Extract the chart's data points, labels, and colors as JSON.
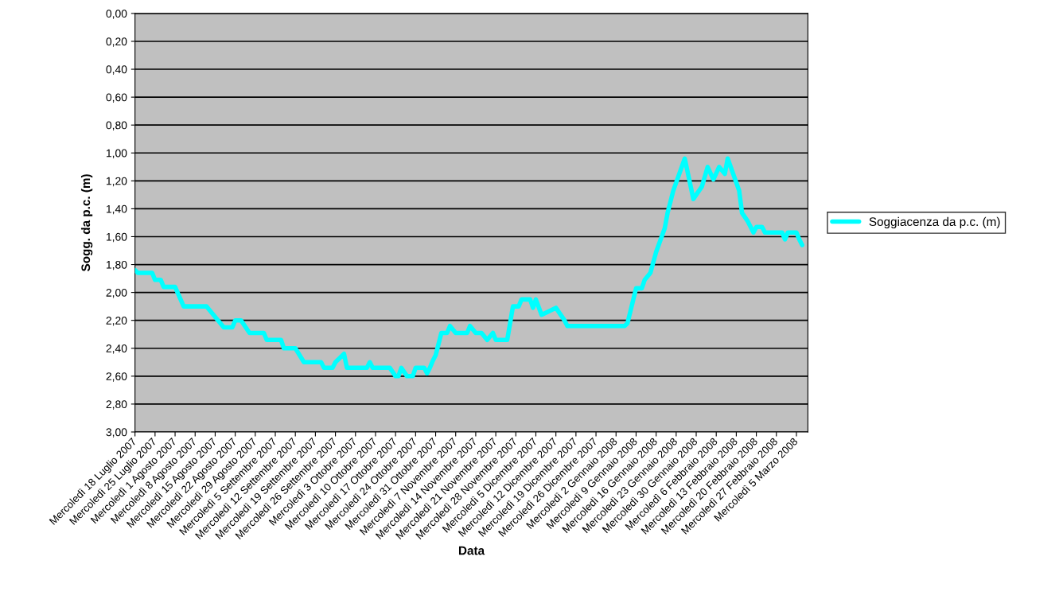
{
  "chart_data": {
    "type": "line",
    "xlabel": "Data",
    "ylabel": "Sogg. da p.c. (m)",
    "x": [
      "2007-07-18",
      "2007-07-19",
      "2007-07-24",
      "2007-07-25",
      "2007-07-27",
      "2007-07-28",
      "2007-08-01",
      "2007-08-04",
      "2007-08-12",
      "2007-08-16",
      "2007-08-18",
      "2007-08-21",
      "2007-08-22",
      "2007-08-24",
      "2007-08-27",
      "2007-09-01",
      "2007-09-02",
      "2007-09-07",
      "2007-09-08",
      "2007-09-12",
      "2007-09-15",
      "2007-09-21",
      "2007-09-22",
      "2007-09-25",
      "2007-09-26",
      "2007-09-29",
      "2007-09-30",
      "2007-10-07",
      "2007-10-08",
      "2007-10-09",
      "2007-10-15",
      "2007-10-17",
      "2007-10-18",
      "2007-10-19",
      "2007-10-21",
      "2007-10-23",
      "2007-10-24",
      "2007-10-27",
      "2007-10-28",
      "2007-10-29",
      "2007-10-30",
      "2007-10-31",
      "2007-11-02",
      "2007-11-04",
      "2007-11-05",
      "2007-11-07",
      "2007-11-11",
      "2007-11-12",
      "2007-11-14",
      "2007-11-16",
      "2007-11-18",
      "2007-11-20",
      "2007-11-21",
      "2007-11-25",
      "2007-11-27",
      "2007-11-29",
      "2007-11-30",
      "2007-12-03",
      "2007-12-04",
      "2007-12-05",
      "2007-12-07",
      "2007-12-12",
      "2007-12-15",
      "2007-12-16",
      "2008-01-05",
      "2008-01-06",
      "2008-01-09",
      "2008-01-11",
      "2008-01-12",
      "2008-01-14",
      "2008-01-16",
      "2008-01-19",
      "2008-01-20",
      "2008-01-22",
      "2008-01-26",
      "2008-01-29",
      "2008-02-01",
      "2008-02-03",
      "2008-02-05",
      "2008-02-07",
      "2008-02-09",
      "2008-02-10",
      "2008-02-14",
      "2008-02-15",
      "2008-02-17",
      "2008-02-19",
      "2008-02-20",
      "2008-02-22",
      "2008-02-23",
      "2008-02-29",
      "2008-03-01",
      "2008-03-02",
      "2008-03-05",
      "2008-03-06",
      "2008-03-07"
    ],
    "series": [
      {
        "name": "Soggiacenza da p.c. (m)",
        "color": "#00ffff",
        "values": [
          1.84,
          1.86,
          1.86,
          1.91,
          1.91,
          1.96,
          1.96,
          2.1,
          2.1,
          2.2,
          2.25,
          2.25,
          2.2,
          2.2,
          2.29,
          2.29,
          2.34,
          2.34,
          2.4,
          2.4,
          2.5,
          2.5,
          2.54,
          2.54,
          2.5,
          2.44,
          2.54,
          2.54,
          2.5,
          2.54,
          2.54,
          2.6,
          2.6,
          2.54,
          2.6,
          2.6,
          2.54,
          2.54,
          2.58,
          2.54,
          2.49,
          2.45,
          2.29,
          2.29,
          2.24,
          2.29,
          2.29,
          2.24,
          2.29,
          2.29,
          2.34,
          2.29,
          2.34,
          2.34,
          2.1,
          2.1,
          2.05,
          2.05,
          2.11,
          2.05,
          2.16,
          2.11,
          2.2,
          2.24,
          2.24,
          2.22,
          1.97,
          1.97,
          1.91,
          1.86,
          1.71,
          1.54,
          1.43,
          1.27,
          1.04,
          1.33,
          1.24,
          1.1,
          1.19,
          1.1,
          1.15,
          1.04,
          1.27,
          1.43,
          1.49,
          1.57,
          1.53,
          1.53,
          1.57,
          1.57,
          1.62,
          1.57,
          1.57,
          1.62,
          1.66
        ]
      }
    ],
    "xlim": [
      "2007-07-18",
      "2008-03-09"
    ],
    "ylim": [
      3.0,
      0.0
    ],
    "xticks": [
      {
        "value": "2007-07-18",
        "label": "Mercoledì 18 Luglio 2007"
      },
      {
        "value": "2007-07-25",
        "label": "Mercoledì 25 Luglio 2007"
      },
      {
        "value": "2007-08-01",
        "label": "Mercoledì 1 Agosto 2007"
      },
      {
        "value": "2007-08-08",
        "label": "Mercoledì 8 Agosto 2007"
      },
      {
        "value": "2007-08-15",
        "label": "Mercoledì 15 Agosto 2007"
      },
      {
        "value": "2007-08-22",
        "label": "Mercoledì 22 Agosto 2007"
      },
      {
        "value": "2007-08-29",
        "label": "Mercoledì 29 Agosto 2007"
      },
      {
        "value": "2007-09-05",
        "label": "Mercoledì 5 Settembre 2007"
      },
      {
        "value": "2007-09-12",
        "label": "Mercoledì 12 Settembre 2007"
      },
      {
        "value": "2007-09-19",
        "label": "Mercoledì 19 Settembre 2007"
      },
      {
        "value": "2007-09-26",
        "label": "Mercoledì 26 Settembre 2007"
      },
      {
        "value": "2007-10-03",
        "label": "Mercoledì 3 Ottobre 2007"
      },
      {
        "value": "2007-10-10",
        "label": "Mercoledì 10 Ottobre 2007"
      },
      {
        "value": "2007-10-17",
        "label": "Mercoledì 17 Ottobre 2007"
      },
      {
        "value": "2007-10-24",
        "label": "Mercoledì 24 Ottobre 2007"
      },
      {
        "value": "2007-10-31",
        "label": "Mercoledì 31 Ottobre 2007"
      },
      {
        "value": "2007-11-07",
        "label": "Mercoledì 7 Novembre 2007"
      },
      {
        "value": "2007-11-14",
        "label": "Mercoledì 14 Novembre 2007"
      },
      {
        "value": "2007-11-21",
        "label": "Mercoledì 21 Novembre 2007"
      },
      {
        "value": "2007-11-28",
        "label": "Mercoledì 28 Novembre 2007"
      },
      {
        "value": "2007-12-05",
        "label": "Mercoledì 5 Dicembre 2007"
      },
      {
        "value": "2007-12-12",
        "label": "Mercoledì 12 Dicembre 2007"
      },
      {
        "value": "2007-12-19",
        "label": "Mercoledì 19 Dicembre 2007"
      },
      {
        "value": "2007-12-26",
        "label": "Mercoledì 26 Dicembre 2007"
      },
      {
        "value": "2008-01-02",
        "label": "Mercoledì 2 Gennaio 2008"
      },
      {
        "value": "2008-01-09",
        "label": "Mercoledì 9 Gennaio 2008"
      },
      {
        "value": "2008-01-16",
        "label": "Mercoledì 16 Gennaio 2008"
      },
      {
        "value": "2008-01-23",
        "label": "Mercoledì 23 Gennaio 2008"
      },
      {
        "value": "2008-01-30",
        "label": "Mercoledì 30 Gennaio 2008"
      },
      {
        "value": "2008-02-06",
        "label": "Mercoledì 6 Febbraio 2008"
      },
      {
        "value": "2008-02-13",
        "label": "Mercoledì 13 Febbraio 2008"
      },
      {
        "value": "2008-02-20",
        "label": "Mercoledì 20 Febbraio 2008"
      },
      {
        "value": "2008-02-27",
        "label": "Mercoledì 27 Febbraio 2008"
      },
      {
        "value": "2008-03-05",
        "label": "Mercoledì 5 Marzo 2008"
      }
    ],
    "yticks": [
      {
        "value": 0.0,
        "label": "0,00"
      },
      {
        "value": 0.2,
        "label": "0,20"
      },
      {
        "value": 0.4,
        "label": "0,40"
      },
      {
        "value": 0.6,
        "label": "0,60"
      },
      {
        "value": 0.8,
        "label": "0,80"
      },
      {
        "value": 1.0,
        "label": "1,00"
      },
      {
        "value": 1.2,
        "label": "1,20"
      },
      {
        "value": 1.4,
        "label": "1,40"
      },
      {
        "value": 1.6,
        "label": "1,60"
      },
      {
        "value": 1.8,
        "label": "1,80"
      },
      {
        "value": 2.0,
        "label": "2,00"
      },
      {
        "value": 2.2,
        "label": "2,20"
      },
      {
        "value": 2.4,
        "label": "2,40"
      },
      {
        "value": 2.6,
        "label": "2,60"
      },
      {
        "value": 2.8,
        "label": "2,80"
      },
      {
        "value": 3.0,
        "label": "3,00"
      }
    ],
    "grid": "y",
    "legend": "right"
  }
}
